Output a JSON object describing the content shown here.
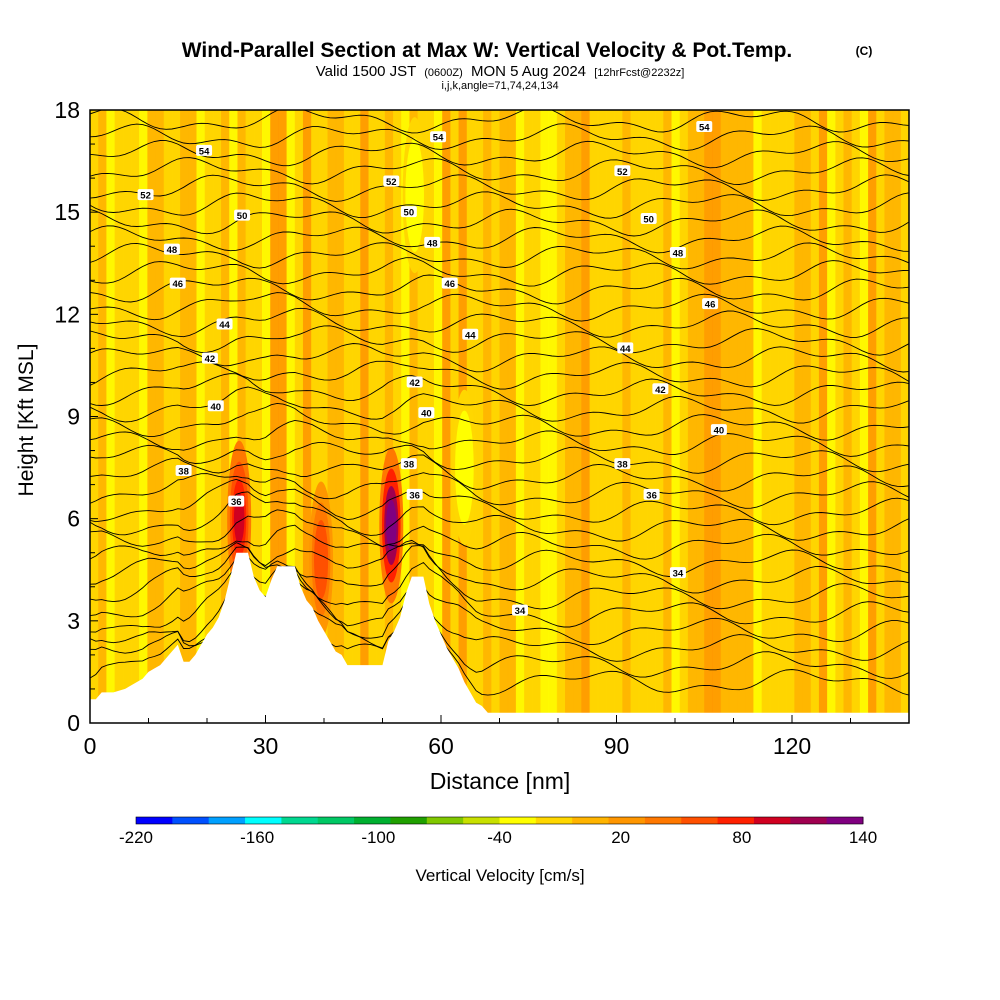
{
  "chart_data": {
    "type": "contour",
    "title": "Wind-Parallel Section at Max W: Vertical Velocity & Pot.Temp.",
    "title_suffix": "(C)",
    "subtitle_main": "Valid 1500 JST",
    "subtitle_utc": "(0600Z)",
    "subtitle_date": "MON 5 Aug 2024",
    "subtitle_fcst": "[12hrFcst@2232z]",
    "subtitle_ijk": "i,j,k,angle=71,74,24,134",
    "xlabel": "Distance [nm]",
    "ylabel": "Height [Kft MSL]",
    "xlim": [
      0,
      140
    ],
    "ylim": [
      0,
      18
    ],
    "x_ticks": [
      "0",
      "30",
      "60",
      "90",
      "120"
    ],
    "x_tick_values": [
      0,
      30,
      60,
      90,
      120
    ],
    "y_ticks": [
      "0",
      "3",
      "6",
      "9",
      "12",
      "15",
      "18"
    ],
    "y_tick_values": [
      0,
      3,
      6,
      9,
      12,
      15,
      18
    ],
    "colorbar": {
      "label": "Vertical Velocity [cm/s]",
      "tick_labels": [
        "-220",
        "-160",
        "-100",
        "-40",
        "20",
        "80",
        "140"
      ],
      "tick_values": [
        -220,
        -160,
        -100,
        -40,
        20,
        80,
        140
      ],
      "bounds": [
        -220,
        140
      ],
      "colors": [
        "#0000ff",
        "#0050ff",
        "#00a0ff",
        "#00ffff",
        "#00d890",
        "#00c864",
        "#00b030",
        "#20a000",
        "#80c800",
        "#c8e000",
        "#ffff00",
        "#ffd700",
        "#ffb400",
        "#ff9600",
        "#ff7800",
        "#ff5000",
        "#ff2000",
        "#d00020",
        "#a00050",
        "#800080"
      ]
    },
    "theta_contour_labels": [
      {
        "label": "34",
        "x": 73.5,
        "y": 3.3
      },
      {
        "label": "34",
        "x": 100.5,
        "y": 4.4
      },
      {
        "label": "36",
        "x": 25,
        "y": 6.5
      },
      {
        "label": "36",
        "x": 55.5,
        "y": 6.7
      },
      {
        "label": "36",
        "x": 96,
        "y": 6.7
      },
      {
        "label": "38",
        "x": 16,
        "y": 7.4
      },
      {
        "label": "38",
        "x": 54.5,
        "y": 7.6
      },
      {
        "label": "38",
        "x": 91,
        "y": 7.6
      },
      {
        "label": "40",
        "x": 21.5,
        "y": 9.3
      },
      {
        "label": "40",
        "x": 57.5,
        "y": 9.1
      },
      {
        "label": "40",
        "x": 107.5,
        "y": 8.6
      },
      {
        "label": "42",
        "x": 20.5,
        "y": 10.7
      },
      {
        "label": "42",
        "x": 55.5,
        "y": 10.0
      },
      {
        "label": "42",
        "x": 97.5,
        "y": 9.8
      },
      {
        "label": "44",
        "x": 23,
        "y": 11.7
      },
      {
        "label": "44",
        "x": 65,
        "y": 11.4
      },
      {
        "label": "44",
        "x": 91.5,
        "y": 11.0
      },
      {
        "label": "46",
        "x": 15,
        "y": 12.9
      },
      {
        "label": "46",
        "x": 61.5,
        "y": 12.9
      },
      {
        "label": "46",
        "x": 106,
        "y": 12.3
      },
      {
        "label": "48",
        "x": 14,
        "y": 13.9
      },
      {
        "label": "48",
        "x": 58.5,
        "y": 14.1
      },
      {
        "label": "48",
        "x": 100.5,
        "y": 13.8
      },
      {
        "label": "50",
        "x": 26,
        "y": 14.9
      },
      {
        "label": "50",
        "x": 54.5,
        "y": 15.0
      },
      {
        "label": "50",
        "x": 95.5,
        "y": 14.8
      },
      {
        "label": "52",
        "x": 9.5,
        "y": 15.5
      },
      {
        "label": "52",
        "x": 51.5,
        "y": 15.9
      },
      {
        "label": "52",
        "x": 91,
        "y": 16.2
      },
      {
        "label": "54",
        "x": 19.5,
        "y": 16.8
      },
      {
        "label": "54",
        "x": 59.5,
        "y": 17.2
      },
      {
        "label": "54",
        "x": 105,
        "y": 17.5
      }
    ],
    "terrain_kft": [
      [
        0,
        0.7
      ],
      [
        1,
        0.7
      ],
      [
        2,
        0.9
      ],
      [
        4,
        0.9
      ],
      [
        6,
        1.0
      ],
      [
        7,
        1.1
      ],
      [
        9,
        1.3
      ],
      [
        10,
        1.5
      ],
      [
        11,
        1.6
      ],
      [
        12,
        1.7
      ],
      [
        13,
        1.9
      ],
      [
        14,
        2.1
      ],
      [
        15,
        2.3
      ],
      [
        16,
        1.8
      ],
      [
        17,
        1.8
      ],
      [
        18,
        2.0
      ],
      [
        19,
        2.3
      ],
      [
        20,
        2.6
      ],
      [
        21,
        2.8
      ],
      [
        22,
        3.1
      ],
      [
        23,
        3.6
      ],
      [
        24,
        4.3
      ],
      [
        25,
        5.0
      ],
      [
        27,
        5.0
      ],
      [
        28,
        4.3
      ],
      [
        29,
        3.9
      ],
      [
        30,
        3.7
      ],
      [
        31,
        4.2
      ],
      [
        32,
        4.6
      ],
      [
        35,
        4.6
      ],
      [
        36,
        4.0
      ],
      [
        37,
        3.6
      ],
      [
        38,
        3.4
      ],
      [
        39,
        3.0
      ],
      [
        40,
        2.7
      ],
      [
        41,
        2.4
      ],
      [
        42,
        2.1
      ],
      [
        43,
        2.0
      ],
      [
        44,
        1.7
      ],
      [
        50,
        1.7
      ],
      [
        51,
        2.4
      ],
      [
        52,
        2.7
      ],
      [
        53,
        3.1
      ],
      [
        54,
        3.8
      ],
      [
        55,
        4.3
      ],
      [
        57,
        4.3
      ],
      [
        58,
        3.5
      ],
      [
        59,
        3.0
      ],
      [
        60,
        2.6
      ],
      [
        61,
        2.2
      ],
      [
        62,
        1.9
      ],
      [
        63,
        1.6
      ],
      [
        64,
        1.2
      ],
      [
        65,
        0.9
      ],
      [
        66,
        0.6
      ],
      [
        67,
        0.5
      ],
      [
        68,
        0.3
      ],
      [
        69,
        0.3
      ],
      [
        70,
        0.3
      ],
      [
        140,
        0.3
      ]
    ],
    "vertical_velocity_cells": [
      {
        "x": 25.5,
        "y": 6.0,
        "w_cms": 100
      },
      {
        "x": 51.5,
        "y": 5.8,
        "w_cms": 140
      },
      {
        "x": 39.5,
        "y": 4.8,
        "w_cms": 60
      },
      {
        "x": 55.5,
        "y": 15.5,
        "w_cms": -40
      },
      {
        "x": 64,
        "y": 7.5,
        "w_cms": -40
      }
    ]
  }
}
